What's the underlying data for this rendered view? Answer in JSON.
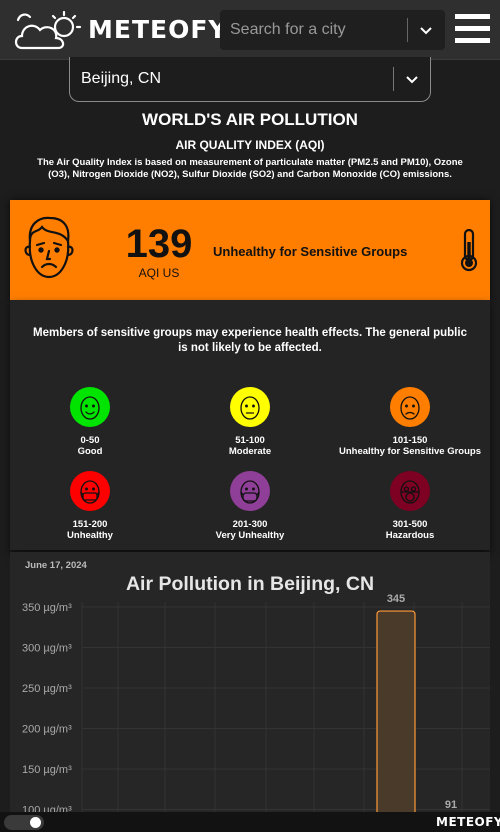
{
  "header": {
    "brand": "METEOFY",
    "search_placeholder": "Search for a city"
  },
  "location": {
    "selected": "Beijing, CN"
  },
  "titles": {
    "main": "WORLD'S AIR POLLUTION",
    "sub": "AIR QUALITY INDEX (AQI)",
    "description": "The Air Quality Index is based on measurement of particulate matter (PM2.5 and PM10), Ozone (O3), Nitrogen Dioxide (NO2), Sulfur Dioxide (SO2) and Carbon Monoxide (CO) emissions."
  },
  "aqi": {
    "value": "139",
    "unit": "AQI US",
    "status": "Unhealthy for Sensitive Groups",
    "color": "#ff7e00"
  },
  "advice": "Members of sensitive groups may experience health effects. The general public is not likely to be affected.",
  "levels": [
    {
      "range": "0-50",
      "label": "Good",
      "color": "#00e400",
      "icon": "smiling-face-icon"
    },
    {
      "range": "51-100",
      "label": "Moderate",
      "color": "#ffff00",
      "icon": "neutral-face-icon"
    },
    {
      "range": "101-150",
      "label": "Unhealthy for Sensitive Groups",
      "color": "#ff7e00",
      "icon": "sad-face-icon"
    },
    {
      "range": "151-200",
      "label": "Unhealthy",
      "color": "#ff0000",
      "icon": "masked-face-icon"
    },
    {
      "range": "201-300",
      "label": "Very Unhealthy",
      "color": "#8f3f97",
      "icon": "masked-face-icon"
    },
    {
      "range": "301-500",
      "label": "Hazardous",
      "color": "#7e0023",
      "icon": "gas-mask-face-icon"
    }
  ],
  "chart_data": {
    "type": "bar",
    "date": "June 17, 2024",
    "title": "Air Pollution in Beijing, CN",
    "y_ticks": [
      "350 µg/m³",
      "300 µg/m³",
      "250 µg/m³",
      "200 µg/m³",
      "150 µg/m³",
      "100 µg/m³"
    ],
    "y_tick_values": [
      350,
      300,
      250,
      200,
      150,
      100
    ],
    "values": [
      345,
      91
    ],
    "data_labels": [
      "345",
      "91"
    ],
    "bar_color": "#4a3a2a",
    "bar_border": "#ff9a3c",
    "grid": true
  },
  "footer": {
    "brand": "METEOFY"
  }
}
